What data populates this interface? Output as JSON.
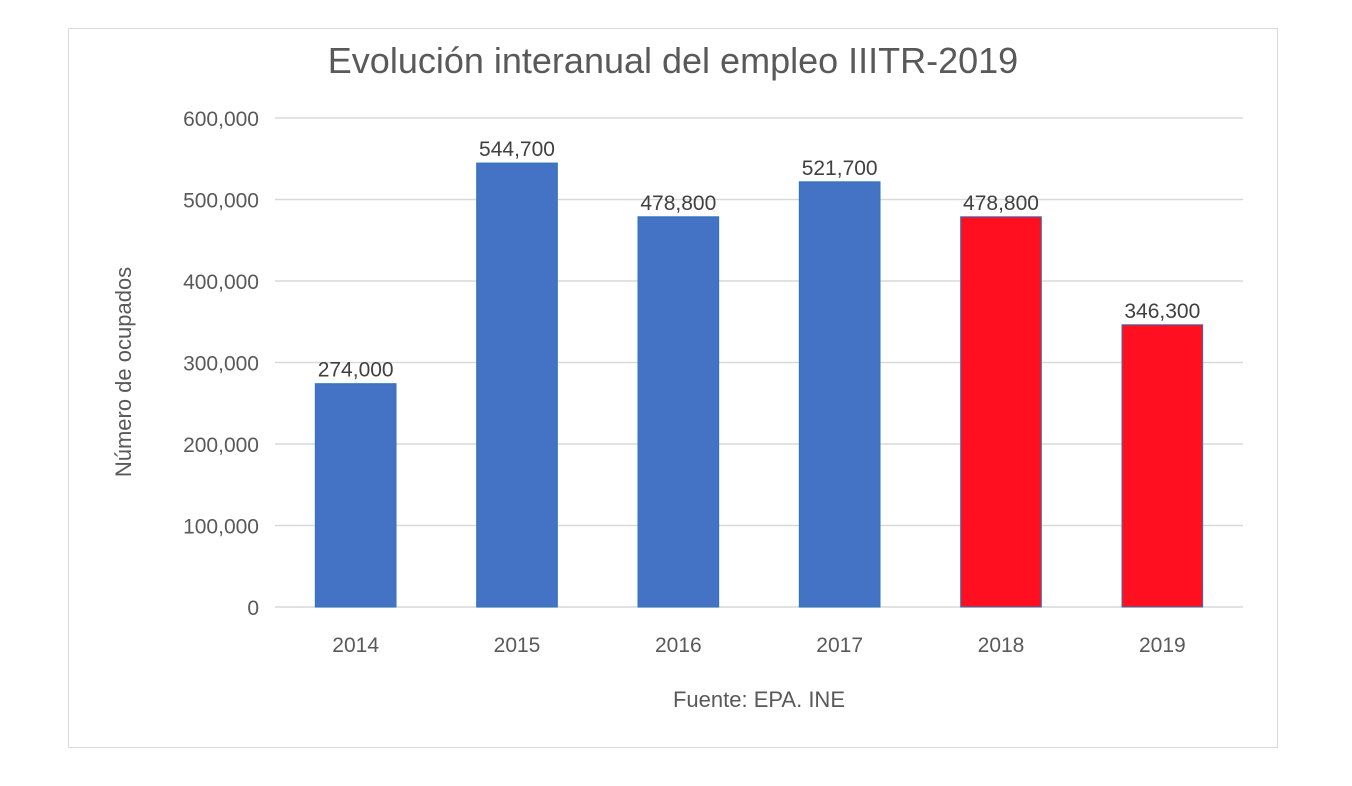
{
  "chart_data": {
    "type": "bar",
    "title": "Evolución interanual del empleo IIITR-2019",
    "xlabel": "Fuente: EPA. INE",
    "ylabel": "Número de ocupados",
    "categories": [
      "2014",
      "2015",
      "2016",
      "2017",
      "2018",
      "2019"
    ],
    "values": [
      274000,
      544700,
      478800,
      521700,
      478800,
      346300
    ],
    "value_labels": [
      "274,000",
      "544,700",
      "478,800",
      "521,700",
      "478,800",
      "346,300"
    ],
    "bar_colors": [
      "#4472c4",
      "#4472c4",
      "#4472c4",
      "#4472c4",
      "#ff0f1f",
      "#ff0f1f"
    ],
    "ylim": [
      0,
      600000
    ],
    "yticks": [
      0,
      100000,
      200000,
      300000,
      400000,
      500000,
      600000
    ],
    "ytick_labels": [
      "0",
      "100,000",
      "200,000",
      "300,000",
      "400,000",
      "500,000",
      "600,000"
    ],
    "grid": true,
    "legend": "none"
  }
}
